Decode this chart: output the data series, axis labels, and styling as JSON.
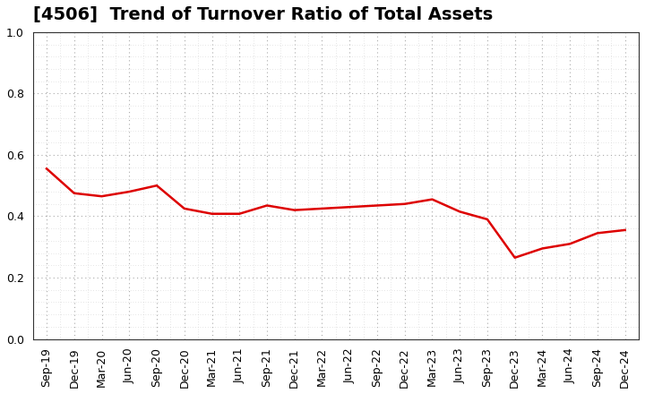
{
  "title": "[4506]  Trend of Turnover Ratio of Total Assets",
  "labels": [
    "Sep-19",
    "Dec-19",
    "Mar-20",
    "Jun-20",
    "Sep-20",
    "Dec-20",
    "Mar-21",
    "Jun-21",
    "Sep-21",
    "Dec-21",
    "Mar-22",
    "Jun-22",
    "Sep-22",
    "Dec-22",
    "Mar-23",
    "Jun-23",
    "Sep-23",
    "Dec-23",
    "Mar-24",
    "Jun-24",
    "Sep-24",
    "Dec-24"
  ],
  "values": [
    0.555,
    0.475,
    0.465,
    0.48,
    0.5,
    0.425,
    0.408,
    0.408,
    0.435,
    0.42,
    0.425,
    0.43,
    0.435,
    0.44,
    0.455,
    0.415,
    0.39,
    0.265,
    0.295,
    0.31,
    0.345,
    0.355
  ],
  "line_color": "#dd0000",
  "line_width": 1.8,
  "ylim": [
    0.0,
    1.0
  ],
  "yticks": [
    0.0,
    0.2,
    0.4,
    0.6,
    0.8,
    1.0
  ],
  "background_color": "#ffffff",
  "grid_color": "#aaaaaa",
  "title_fontsize": 14,
  "tick_fontsize": 9,
  "minor_grid_color": "#cccccc",
  "figsize": [
    7.2,
    4.4
  ],
  "dpi": 100
}
